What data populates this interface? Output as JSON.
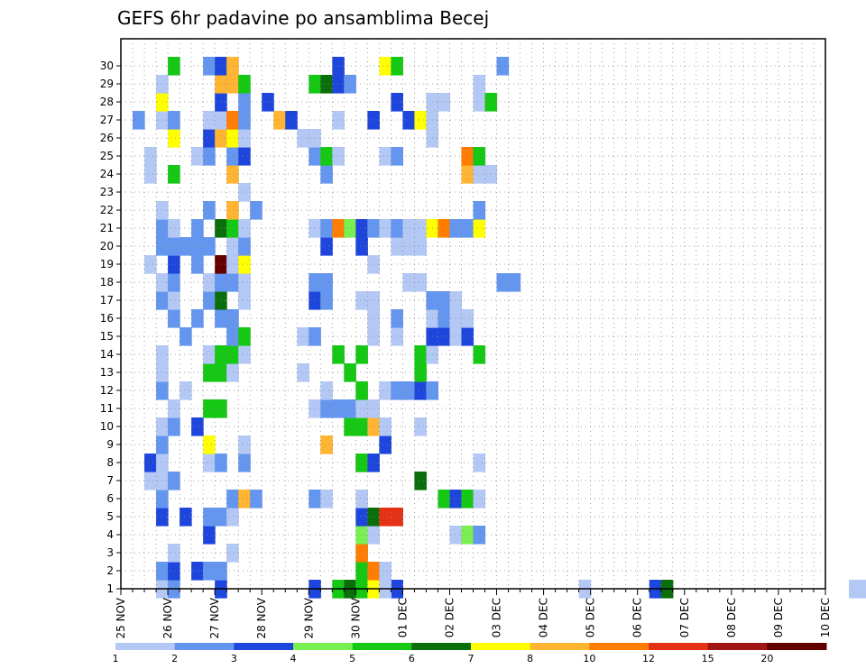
{
  "chart_data": {
    "type": "heatmap",
    "title": "GEFS 6hr padavine po ansamblima Becej",
    "x_tick_labels": [
      "25 NOV",
      "26 NOV",
      "27 NOV",
      "28 NOV",
      "29 NOV",
      "30 NOV",
      "01 DEC",
      "02 DEC",
      "03 DEC",
      "04 DEC",
      "05 DEC",
      "06 DEC",
      "07 DEC",
      "08 DEC",
      "09 DEC",
      "10 DEC"
    ],
    "y_tick_labels": [
      "1",
      "2",
      "3",
      "4",
      "5",
      "6",
      "7",
      "8",
      "9",
      "10",
      "11",
      "12",
      "13",
      "14",
      "15",
      "16",
      "17",
      "18",
      "19",
      "20",
      "21",
      "22",
      "23",
      "24",
      "25",
      "26",
      "27",
      "28",
      "29",
      "30"
    ],
    "x_steps_per_day": 4,
    "grid": true,
    "colorbar": {
      "position": "bottom",
      "colors": [
        "#b4c8f5",
        "#6496f0",
        "#1e46dc",
        "#78f050",
        "#14c814",
        "#0a6e0a",
        "#ffff00",
        "#ffb432",
        "#ff7d00",
        "#e63214",
        "#a01414",
        "#640000"
      ],
      "labels": [
        "1",
        "2",
        "3",
        "4",
        "5",
        "6",
        "7",
        "8",
        "10",
        "12",
        "15",
        "20"
      ]
    },
    "cells": [
      [
        3,
        0,
        0
      ],
      [
        4,
        1,
        0
      ],
      [
        8,
        2,
        0
      ],
      [
        18,
        4,
        0
      ],
      [
        19,
        5,
        0
      ],
      [
        22,
        0,
        0
      ],
      [
        23,
        2,
        0
      ],
      [
        39,
        0,
        0
      ],
      [
        45,
        2,
        0
      ],
      [
        46,
        5,
        0
      ],
      [
        62,
        0,
        0
      ],
      [
        63,
        0,
        0
      ],
      [
        64,
        0,
        0
      ],
      [
        8,
        0,
        1
      ],
      [
        16,
        2,
        0
      ],
      [
        20,
        4,
        0
      ],
      [
        21,
        6,
        0
      ],
      [
        22,
        0,
        0
      ],
      [
        3,
        1,
        1
      ],
      [
        4,
        2,
        1
      ],
      [
        6,
        2,
        1
      ],
      [
        7,
        1,
        1
      ],
      [
        8,
        1,
        1
      ],
      [
        20,
        4,
        1
      ],
      [
        21,
        8,
        1
      ],
      [
        22,
        0,
        1
      ],
      [
        4,
        0,
        2
      ],
      [
        9,
        0,
        2
      ],
      [
        20,
        8,
        2
      ],
      [
        7,
        2,
        3
      ],
      [
        20,
        3,
        3
      ],
      [
        21,
        0,
        3
      ],
      [
        28,
        0,
        3
      ],
      [
        29,
        3,
        3
      ],
      [
        30,
        1,
        3
      ],
      [
        3,
        2,
        4
      ],
      [
        5,
        2,
        4
      ],
      [
        7,
        1,
        4
      ],
      [
        8,
        1,
        4
      ],
      [
        9,
        0,
        4
      ],
      [
        20,
        2,
        4
      ],
      [
        21,
        5,
        4
      ],
      [
        22,
        9,
        4
      ],
      [
        23,
        9,
        4
      ],
      [
        3,
        1,
        5
      ],
      [
        9,
        1,
        5
      ],
      [
        10,
        7,
        5
      ],
      [
        11,
        1,
        5
      ],
      [
        16,
        1,
        5
      ],
      [
        17,
        0,
        5
      ],
      [
        20,
        0,
        5
      ],
      [
        27,
        4,
        5
      ],
      [
        28,
        2,
        5
      ],
      [
        29,
        4,
        5
      ],
      [
        30,
        0,
        5
      ],
      [
        2,
        0,
        6
      ],
      [
        3,
        0,
        6
      ],
      [
        4,
        1,
        6
      ],
      [
        25,
        5,
        6
      ],
      [
        2,
        2,
        7
      ],
      [
        3,
        0,
        7
      ],
      [
        7,
        0,
        7
      ],
      [
        8,
        1,
        7
      ],
      [
        10,
        1,
        7
      ],
      [
        20,
        9,
        7
      ],
      [
        20,
        4,
        7
      ],
      [
        21,
        2,
        7
      ],
      [
        30,
        0,
        7
      ],
      [
        3,
        1,
        8
      ],
      [
        7,
        6,
        8
      ],
      [
        10,
        0,
        8
      ],
      [
        17,
        7,
        8
      ],
      [
        22,
        2,
        8
      ],
      [
        3,
        0,
        9
      ],
      [
        4,
        1,
        9
      ],
      [
        6,
        2,
        9
      ],
      [
        19,
        4,
        9
      ],
      [
        20,
        4,
        9
      ],
      [
        21,
        7,
        9
      ],
      [
        22,
        0,
        9
      ],
      [
        25,
        0,
        9
      ],
      [
        4,
        0,
        10
      ],
      [
        7,
        4,
        10
      ],
      [
        8,
        4,
        10
      ],
      [
        16,
        0,
        10
      ],
      [
        17,
        1,
        10
      ],
      [
        18,
        1,
        10
      ],
      [
        19,
        1,
        10
      ],
      [
        20,
        0,
        10
      ],
      [
        21,
        0,
        10
      ],
      [
        3,
        1,
        11
      ],
      [
        5,
        0,
        11
      ],
      [
        17,
        0,
        11
      ],
      [
        20,
        4,
        11
      ],
      [
        22,
        0,
        11
      ],
      [
        23,
        1,
        11
      ],
      [
        24,
        1,
        11
      ],
      [
        25,
        2,
        11
      ],
      [
        26,
        1,
        11
      ],
      [
        3,
        0,
        12
      ],
      [
        7,
        4,
        12
      ],
      [
        8,
        4,
        12
      ],
      [
        9,
        0,
        12
      ],
      [
        15,
        0,
        12
      ],
      [
        19,
        4,
        12
      ],
      [
        25,
        4,
        12
      ],
      [
        3,
        0,
        13
      ],
      [
        7,
        0,
        13
      ],
      [
        8,
        4,
        13
      ],
      [
        9,
        4,
        13
      ],
      [
        10,
        0,
        13
      ],
      [
        18,
        4,
        13
      ],
      [
        20,
        4,
        13
      ],
      [
        25,
        4,
        13
      ],
      [
        26,
        0,
        13
      ],
      [
        30,
        4,
        13
      ],
      [
        5,
        1,
        14
      ],
      [
        9,
        1,
        14
      ],
      [
        10,
        4,
        14
      ],
      [
        15,
        0,
        14
      ],
      [
        16,
        1,
        14
      ],
      [
        21,
        0,
        14
      ],
      [
        23,
        0,
        14
      ],
      [
        26,
        2,
        14
      ],
      [
        27,
        2,
        14
      ],
      [
        28,
        0,
        14
      ],
      [
        29,
        2,
        14
      ],
      [
        4,
        1,
        15
      ],
      [
        6,
        1,
        15
      ],
      [
        8,
        1,
        15
      ],
      [
        9,
        1,
        15
      ],
      [
        21,
        0,
        15
      ],
      [
        23,
        1,
        15
      ],
      [
        26,
        0,
        15
      ],
      [
        27,
        1,
        15
      ],
      [
        28,
        0,
        15
      ],
      [
        29,
        0,
        15
      ],
      [
        3,
        1,
        16
      ],
      [
        4,
        0,
        16
      ],
      [
        7,
        1,
        16
      ],
      [
        8,
        5,
        16
      ],
      [
        10,
        0,
        16
      ],
      [
        16,
        2,
        16
      ],
      [
        17,
        1,
        16
      ],
      [
        20,
        0,
        16
      ],
      [
        21,
        0,
        16
      ],
      [
        26,
        1,
        16
      ],
      [
        27,
        1,
        16
      ],
      [
        28,
        0,
        16
      ],
      [
        3,
        0,
        17
      ],
      [
        4,
        1,
        17
      ],
      [
        7,
        0,
        17
      ],
      [
        8,
        1,
        17
      ],
      [
        9,
        1,
        17
      ],
      [
        10,
        0,
        17
      ],
      [
        16,
        1,
        17
      ],
      [
        17,
        1,
        17
      ],
      [
        24,
        0,
        17
      ],
      [
        25,
        0,
        17
      ],
      [
        32,
        1,
        17
      ],
      [
        33,
        1,
        17
      ],
      [
        2,
        0,
        18
      ],
      [
        4,
        2,
        18
      ],
      [
        6,
        1,
        18
      ],
      [
        8,
        11,
        18
      ],
      [
        9,
        0,
        18
      ],
      [
        10,
        6,
        18
      ],
      [
        21,
        0,
        18
      ],
      [
        3,
        1,
        19
      ],
      [
        4,
        1,
        19
      ],
      [
        5,
        1,
        19
      ],
      [
        6,
        1,
        19
      ],
      [
        7,
        1,
        19
      ],
      [
        9,
        0,
        19
      ],
      [
        10,
        1,
        19
      ],
      [
        17,
        2,
        19
      ],
      [
        20,
        2,
        19
      ],
      [
        23,
        0,
        19
      ],
      [
        24,
        0,
        19
      ],
      [
        25,
        0,
        19
      ],
      [
        3,
        1,
        20
      ],
      [
        4,
        0,
        20
      ],
      [
        6,
        1,
        20
      ],
      [
        8,
        5,
        20
      ],
      [
        9,
        4,
        20
      ],
      [
        10,
        0,
        20
      ],
      [
        16,
        0,
        20
      ],
      [
        17,
        1,
        20
      ],
      [
        18,
        8,
        20
      ],
      [
        19,
        3,
        20
      ],
      [
        20,
        2,
        20
      ],
      [
        21,
        1,
        20
      ],
      [
        22,
        0,
        20
      ],
      [
        23,
        1,
        20
      ],
      [
        24,
        0,
        20
      ],
      [
        25,
        0,
        20
      ],
      [
        26,
        6,
        20
      ],
      [
        27,
        8,
        20
      ],
      [
        28,
        1,
        20
      ],
      [
        29,
        1,
        20
      ],
      [
        30,
        6,
        20
      ],
      [
        3,
        0,
        21
      ],
      [
        7,
        1,
        21
      ],
      [
        9,
        7,
        21
      ],
      [
        11,
        1,
        21
      ],
      [
        30,
        1,
        21
      ],
      [
        10,
        0,
        22
      ],
      [
        2,
        0,
        23
      ],
      [
        4,
        4,
        23
      ],
      [
        9,
        7,
        23
      ],
      [
        17,
        1,
        23
      ],
      [
        29,
        7,
        23
      ],
      [
        30,
        0,
        23
      ],
      [
        31,
        0,
        23
      ],
      [
        2,
        0,
        24
      ],
      [
        6,
        0,
        24
      ],
      [
        7,
        1,
        24
      ],
      [
        9,
        1,
        24
      ],
      [
        10,
        2,
        24
      ],
      [
        16,
        1,
        24
      ],
      [
        17,
        4,
        24
      ],
      [
        18,
        0,
        24
      ],
      [
        22,
        0,
        24
      ],
      [
        23,
        1,
        24
      ],
      [
        29,
        8,
        24
      ],
      [
        30,
        4,
        24
      ],
      [
        4,
        6,
        25
      ],
      [
        7,
        2,
        25
      ],
      [
        8,
        7,
        25
      ],
      [
        9,
        6,
        25
      ],
      [
        10,
        0,
        25
      ],
      [
        15,
        0,
        25
      ],
      [
        16,
        0,
        25
      ],
      [
        26,
        0,
        25
      ],
      [
        1,
        1,
        26
      ],
      [
        3,
        0,
        26
      ],
      [
        4,
        1,
        26
      ],
      [
        7,
        0,
        26
      ],
      [
        8,
        0,
        26
      ],
      [
        9,
        8,
        26
      ],
      [
        10,
        1,
        26
      ],
      [
        13,
        7,
        26
      ],
      [
        14,
        2,
        26
      ],
      [
        18,
        0,
        26
      ],
      [
        21,
        2,
        26
      ],
      [
        24,
        2,
        26
      ],
      [
        25,
        6,
        26
      ],
      [
        26,
        0,
        26
      ],
      [
        3,
        6,
        27
      ],
      [
        8,
        2,
        27
      ],
      [
        10,
        1,
        27
      ],
      [
        12,
        2,
        27
      ],
      [
        23,
        2,
        27
      ],
      [
        26,
        0,
        27
      ],
      [
        27,
        0,
        27
      ],
      [
        30,
        0,
        27
      ],
      [
        31,
        4,
        27
      ],
      [
        3,
        0,
        28
      ],
      [
        8,
        7,
        28
      ],
      [
        9,
        7,
        28
      ],
      [
        10,
        4,
        28
      ],
      [
        16,
        4,
        28
      ],
      [
        17,
        5,
        28
      ],
      [
        18,
        2,
        28
      ],
      [
        19,
        1,
        28
      ],
      [
        30,
        0,
        28
      ],
      [
        4,
        4,
        29
      ],
      [
        7,
        1,
        29
      ],
      [
        8,
        2,
        29
      ],
      [
        9,
        7,
        29
      ],
      [
        18,
        2,
        29
      ],
      [
        22,
        6,
        29
      ],
      [
        23,
        4,
        29
      ],
      [
        32,
        1,
        29
      ]
    ]
  }
}
